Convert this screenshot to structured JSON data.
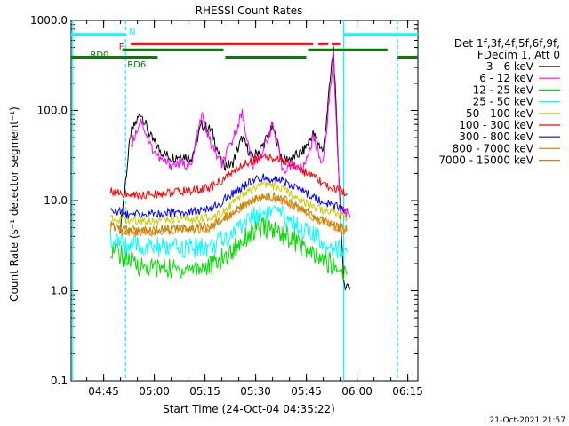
{
  "chart_data": {
    "type": "line",
    "title": "RHESSI Count Rates",
    "xlabel": "Start Time (24-Oct-04 04:35:22)",
    "ylabel": "Count Rate (s⁻¹ detector segment⁻¹)",
    "yscale": "log",
    "ylim": [
      0.1,
      1000.0
    ],
    "xlim": [
      "04:35:22",
      "06:18:00"
    ],
    "x_ticks": [
      "04:45",
      "05:00",
      "05:15",
      "05:30",
      "05:45",
      "06:00",
      "06:15"
    ],
    "y_ticks": [
      "0.1",
      "1.0",
      "10.0",
      "100.0",
      "1000.0"
    ],
    "legend": {
      "placement": "right",
      "header": [
        "Det 1f,3f,4f,5f,6f,9f,",
        "FDecim 1, Att 0"
      ],
      "entries": [
        {
          "label": "3 - 6 keV",
          "color": "#000000"
        },
        {
          "label": "6 - 12 keV",
          "color": "#ff00ff"
        },
        {
          "label": "12 - 25 keV",
          "color": "#00dd00"
        },
        {
          "label": "25 - 50 keV",
          "color": "#00ffff"
        },
        {
          "label": "50 - 100 keV",
          "color": "#cccc00"
        },
        {
          "label": "100 - 300 keV",
          "color": "#ff0000"
        },
        {
          "label": "300 - 800 keV",
          "color": "#0000ff"
        },
        {
          "label": "800 - 7000 keV",
          "color": "#ff7f00"
        },
        {
          "label": "7000 - 15000 keV",
          "color": "#b8860b"
        }
      ]
    },
    "annotations": {
      "N": "N",
      "F": "F",
      "RD0": "RD0",
      "RD6": "RD6"
    },
    "series": [
      {
        "name": "3 - 6 keV",
        "color": "#000000",
        "x": [
          "04:50",
          "04:53",
          "04:56",
          "04:59",
          "05:02",
          "05:05",
          "05:08",
          "05:11",
          "05:14",
          "05:17",
          "05:20",
          "05:23",
          "05:26",
          "05:29",
          "05:32",
          "05:35",
          "05:38",
          "05:41",
          "05:44",
          "05:47",
          "05:50",
          "05:53",
          "05:56",
          "05:58"
        ],
        "y": [
          5,
          55,
          95,
          50,
          35,
          30,
          32,
          30,
          70,
          60,
          25,
          25,
          50,
          30,
          40,
          65,
          28,
          30,
          35,
          55,
          35,
          500,
          1.2,
          1.1
        ]
      },
      {
        "name": "6 - 12 keV",
        "color": "#ff00ff",
        "x": [
          "04:53",
          "04:56",
          "04:59",
          "05:02",
          "05:05",
          "05:08",
          "05:11",
          "05:14",
          "05:17",
          "05:20",
          "05:23",
          "05:26",
          "05:29",
          "05:32",
          "05:35",
          "05:38",
          "05:41",
          "05:44",
          "05:47",
          "05:50",
          "05:53",
          "05:55",
          "05:58"
        ],
        "y": [
          40,
          80,
          40,
          28,
          25,
          26,
          24,
          90,
          40,
          25,
          45,
          95,
          24,
          35,
          70,
          22,
          25,
          22,
          50,
          25,
          400,
          8,
          7
        ]
      },
      {
        "name": "12 - 25 keV",
        "color": "#00dd00",
        "x": [
          "04:47",
          "04:52",
          "04:57",
          "05:02",
          "05:07",
          "05:12",
          "05:17",
          "05:22",
          "05:27",
          "05:32",
          "05:37",
          "05:42",
          "05:47",
          "05:52",
          "05:57"
        ],
        "y": [
          3,
          2.2,
          1.8,
          1.8,
          1.7,
          1.8,
          1.9,
          2.5,
          4.0,
          5.0,
          4.5,
          3.5,
          2.4,
          2.0,
          1.5
        ]
      },
      {
        "name": "25 - 50 keV",
        "color": "#00ffff",
        "x": [
          "04:47",
          "04:52",
          "04:57",
          "05:02",
          "05:07",
          "05:12",
          "05:17",
          "05:22",
          "05:27",
          "05:32",
          "05:37",
          "05:42",
          "05:47",
          "05:52",
          "05:57"
        ],
        "y": [
          3.8,
          3.2,
          3.0,
          3.0,
          2.9,
          3.0,
          3.1,
          4.0,
          6.0,
          7.5,
          7.0,
          5.5,
          4.0,
          3.2,
          2.7
        ]
      },
      {
        "name": "50 - 100 keV",
        "color": "#cccc00",
        "x": [
          "04:47",
          "04:52",
          "04:57",
          "05:02",
          "05:07",
          "05:12",
          "05:17",
          "05:22",
          "05:27",
          "05:32",
          "05:37",
          "05:42",
          "05:47",
          "05:52",
          "05:57"
        ],
        "y": [
          6.5,
          6.0,
          6.0,
          6.0,
          6.1,
          6.2,
          6.5,
          8.5,
          12,
          15,
          14,
          11,
          8.5,
          7.5,
          6.5
        ]
      },
      {
        "name": "100 - 300 keV",
        "color": "#ff0000",
        "x": [
          "04:47",
          "04:52",
          "04:57",
          "05:02",
          "05:07",
          "05:12",
          "05:17",
          "05:22",
          "05:27",
          "05:32",
          "05:37",
          "05:42",
          "05:47",
          "05:52",
          "05:57"
        ],
        "y": [
          13,
          11.5,
          11.5,
          12,
          12.5,
          13,
          14,
          19,
          26,
          30,
          29,
          24,
          18,
          14,
          12
        ]
      },
      {
        "name": "300 - 800 keV",
        "color": "#0000ff",
        "x": [
          "04:47",
          "04:52",
          "04:57",
          "05:02",
          "05:07",
          "05:12",
          "05:17",
          "05:22",
          "05:27",
          "05:32",
          "05:37",
          "05:42",
          "05:47",
          "05:52",
          "05:57"
        ],
        "y": [
          8,
          7,
          7,
          7.2,
          7.4,
          7.6,
          8,
          11,
          15,
          18,
          17,
          14,
          11,
          9,
          8
        ]
      },
      {
        "name": "800 - 7000 keV",
        "color": "#ff7f00",
        "x": [
          "04:47",
          "04:52",
          "04:57",
          "05:02",
          "05:07",
          "05:12",
          "05:17",
          "05:22",
          "05:27",
          "05:32",
          "05:37",
          "05:42",
          "05:47",
          "05:52",
          "05:57"
        ],
        "y": [
          5,
          4.5,
          4.5,
          4.6,
          4.7,
          4.8,
          5,
          6.8,
          9,
          11,
          10.5,
          8.5,
          6.5,
          5.5,
          4.5
        ]
      },
      {
        "name": "7000 - 15000 keV",
        "color": "#b8860b",
        "x": [
          "04:47",
          "04:52",
          "04:57",
          "05:02",
          "05:07",
          "05:12",
          "05:17",
          "05:22",
          "05:27",
          "05:32",
          "05:37",
          "05:42",
          "05:47",
          "05:52",
          "05:57"
        ],
        "y": [
          5.2,
          4.7,
          4.7,
          4.8,
          4.9,
          5.0,
          5.2,
          7.0,
          9.3,
          11.3,
          10.8,
          8.8,
          6.8,
          5.7,
          4.7
        ]
      }
    ],
    "flag_bars": [
      {
        "label": "N",
        "color": "#00ffff",
        "level": 700,
        "segments": [
          [
            "04:35:22",
            "04:51:30"
          ],
          [
            "05:56:00",
            "06:18:00"
          ]
        ]
      },
      {
        "label": "F",
        "color": "#ff0000",
        "level": 550,
        "segments": [
          [
            "04:53:00",
            "05:47:00"
          ],
          [
            "05:48:30",
            "05:51:30"
          ],
          [
            "05:52:30",
            "05:55:00"
          ]
        ]
      },
      {
        "label": "RD0",
        "color": "#008000",
        "level": 470,
        "segments": [
          [
            "04:50:30",
            "05:20:30"
          ],
          [
            "05:45:30",
            "06:09:00"
          ]
        ]
      },
      {
        "label": "RD6",
        "color": "#008000",
        "level": 390,
        "segments": [
          [
            "04:35:22",
            "05:01:00"
          ],
          [
            "05:21:00",
            "05:45:00"
          ],
          [
            "06:12:00",
            "06:18:00"
          ]
        ]
      }
    ],
    "vertical_lines": [
      {
        "time": "04:35:50",
        "color": "#00ffff",
        "style": "solid"
      },
      {
        "time": "04:51:30",
        "color": "#00ffff",
        "style": "dashed"
      },
      {
        "time": "05:56:00",
        "color": "#00ffff",
        "style": "solid"
      },
      {
        "time": "06:12:00",
        "color": "#00ffff",
        "style": "dashed"
      }
    ]
  },
  "footer": {
    "timestamp": "21-Oct-2021 21:57"
  }
}
